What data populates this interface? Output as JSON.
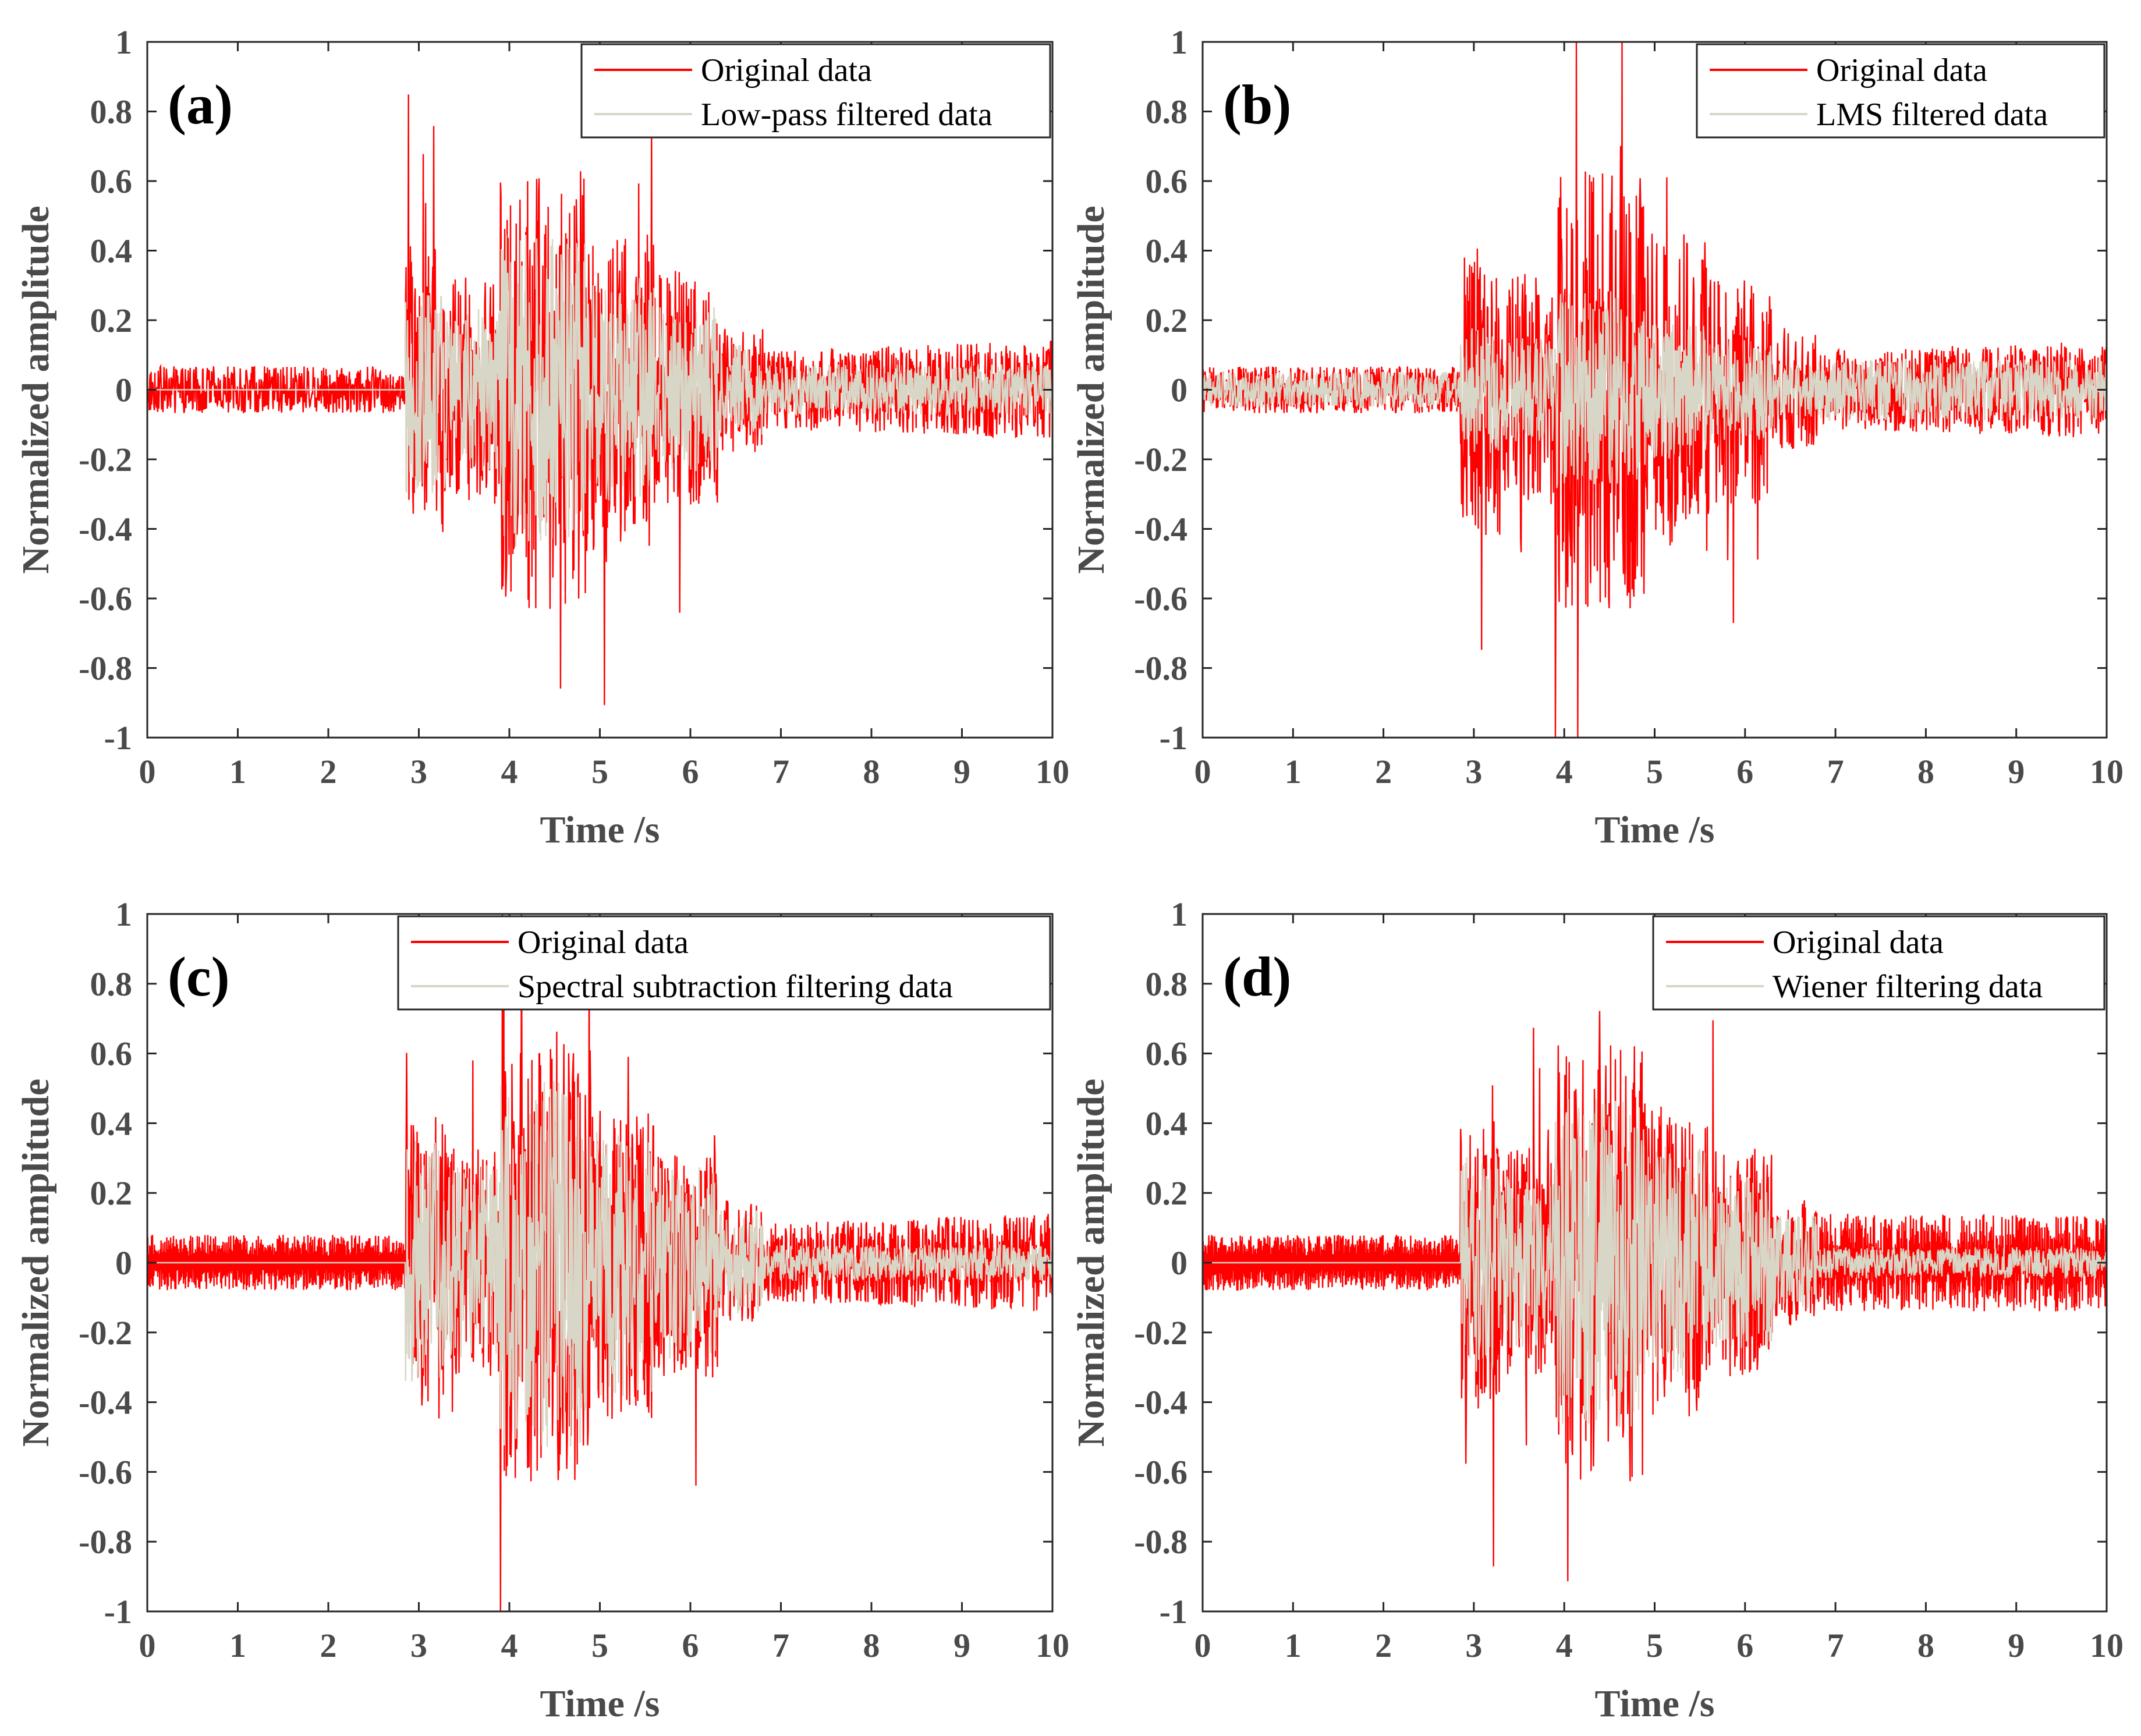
{
  "colors": {
    "original": "#ff0000",
    "filtered": "#d8d6c6",
    "axis": "#262626",
    "background": "#ffffff"
  },
  "chart_data": [
    {
      "type": "line",
      "panel_label": "(a)",
      "xlabel": "Time /s",
      "ylabel": "Normalized amplitude",
      "xlim": [
        0,
        10
      ],
      "ylim": [
        -1,
        1
      ],
      "xticks": [
        "0",
        "1",
        "2",
        "3",
        "4",
        "5",
        "6",
        "7",
        "8",
        "9",
        "10"
      ],
      "yticks": [
        "1",
        "0.8",
        "0.6",
        "0.4",
        "0.2",
        "0",
        "-0.2",
        "-0.4",
        "-0.6",
        "-0.8",
        "-1"
      ],
      "legend_position": "top-right",
      "series": [
        {
          "name": "Original data",
          "key": "original"
        },
        {
          "name": "Low-pass filtered data",
          "key": "filtered"
        }
      ]
    },
    {
      "type": "line",
      "panel_label": "(b)",
      "xlabel": "Time /s",
      "ylabel": "Normalized amplitude",
      "xlim": [
        0,
        10
      ],
      "ylim": [
        -1,
        1
      ],
      "xticks": [
        "0",
        "1",
        "2",
        "3",
        "4",
        "5",
        "6",
        "7",
        "8",
        "9",
        "10"
      ],
      "yticks": [
        "1",
        "0.8",
        "0.6",
        "0.4",
        "0.2",
        "0",
        "-0.2",
        "-0.4",
        "-0.6",
        "-0.8",
        "-1"
      ],
      "legend_position": "top-right",
      "series": [
        {
          "name": "Original data",
          "key": "original"
        },
        {
          "name": "LMS filtered data",
          "key": "filtered"
        }
      ]
    },
    {
      "type": "line",
      "panel_label": "(c)",
      "xlabel": "Time /s",
      "ylabel": "Normalized amplitude",
      "xlim": [
        0,
        10
      ],
      "ylim": [
        -1,
        1
      ],
      "xticks": [
        "0",
        "1",
        "2",
        "3",
        "4",
        "5",
        "6",
        "7",
        "8",
        "9",
        "10"
      ],
      "yticks": [
        "1",
        "0.8",
        "0.6",
        "0.4",
        "0.2",
        "0",
        "-0.2",
        "-0.4",
        "-0.6",
        "-0.8",
        "-1"
      ],
      "legend_position": "top-right",
      "series": [
        {
          "name": "Original data",
          "key": "original"
        },
        {
          "name": "Spectral subtraction filtering data",
          "key": "filtered"
        }
      ]
    },
    {
      "type": "line",
      "panel_label": "(d)",
      "xlabel": "Time /s",
      "ylabel": "Normalized amplitude",
      "xlim": [
        0,
        10
      ],
      "ylim": [
        -1,
        1
      ],
      "xticks": [
        "0",
        "1",
        "2",
        "3",
        "4",
        "5",
        "6",
        "7",
        "8",
        "9",
        "10"
      ],
      "yticks": [
        "1",
        "0.8",
        "0.6",
        "0.4",
        "0.2",
        "0",
        "-0.2",
        "-0.4",
        "-0.6",
        "-0.8",
        "-1"
      ],
      "legend_position": "top-right",
      "series": [
        {
          "name": "Original data",
          "key": "original"
        },
        {
          "name": "Wiener filtering data",
          "key": "filtered"
        }
      ]
    }
  ]
}
